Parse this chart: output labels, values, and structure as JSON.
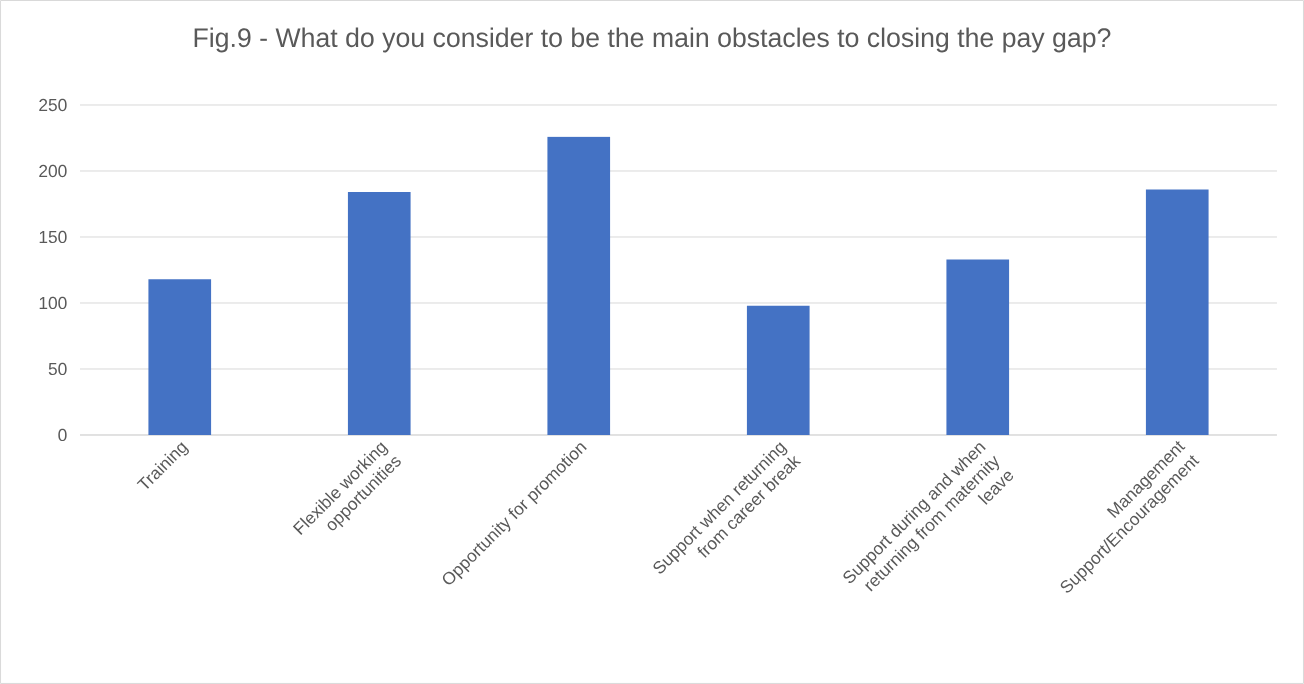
{
  "chart_data": {
    "type": "bar",
    "title": "Fig.9 - What do you consider to be the main obstacles to closing the pay gap?",
    "categories": [
      "Training",
      "Flexible working opportunities",
      "Opportunity for promotion",
      "Support when returning from career break",
      "Support during and when returning from maternity leave",
      "Management Support/Encouragement"
    ],
    "values": [
      118,
      184,
      226,
      98,
      133,
      186
    ],
    "color": "#4472c4",
    "ylim": [
      0,
      250
    ],
    "yticks": [
      0,
      50,
      100,
      150,
      200,
      250
    ],
    "grid": "y"
  }
}
